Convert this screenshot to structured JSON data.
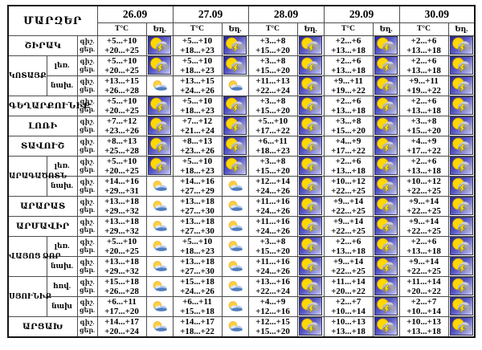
{
  "header": {
    "regions_label": "ՄԱՐԶԵՐ",
    "dates": [
      "26.09",
      "27.09",
      "28.09",
      "29.09",
      "30.09"
    ],
    "temp_label": "T°C",
    "weather_label": "Եղ."
  },
  "labels": {
    "night": "գիշ.",
    "day": "ցեր."
  },
  "colors": {
    "thunder_icon_bg": "#22229e",
    "sun": "#ffd800",
    "storm_cloud": "#a2a2b0",
    "lightning": "#ffe800",
    "partly_cloud": "#6f97cf",
    "border": "#4d4d4d",
    "text": "#000000"
  },
  "rows": [
    {
      "region": "ՇԻՐԱԿ",
      "rowspan": 1,
      "sub": null,
      "cells": [
        {
          "night": "+5...+10",
          "day": "+20...+25",
          "icon": "thunderstorm"
        },
        {
          "night": "+5...+10",
          "day": "+18...+23",
          "icon": "thunderstorm"
        },
        {
          "night": "+3...+8",
          "day": "+15...+20",
          "icon": "thunderstorm"
        },
        {
          "night": "+2...+6",
          "day": "+13...+18",
          "icon": "thunderstorm"
        },
        {
          "night": "+2...+6",
          "day": "+13...+18",
          "icon": "thunderstorm"
        }
      ]
    },
    {
      "region": "ԿՈՏԱՅՔ",
      "rowspan": 2,
      "sub": "լեռ.",
      "cells": [
        {
          "night": "+5...+10",
          "day": "+20...+25",
          "icon": "thunderstorm"
        },
        {
          "night": "+5...+10",
          "day": "+18...+23",
          "icon": "thunderstorm"
        },
        {
          "night": "+3...+8",
          "day": "+15...+20",
          "icon": "thunderstorm"
        },
        {
          "night": "+2...+6",
          "day": "+13...+18",
          "icon": "thunderstorm"
        },
        {
          "night": "+2...+6",
          "day": "+13...+18",
          "icon": "thunderstorm"
        }
      ]
    },
    {
      "region": null,
      "rowspan": 0,
      "sub": "նախ.",
      "cells": [
        {
          "night": "+13...+15",
          "day": "+26...+28",
          "icon": "partly-cloudy"
        },
        {
          "night": "+13...+15",
          "day": "+24...+26",
          "icon": "partly-cloudy"
        },
        {
          "night": "+11...+13",
          "day": "+22...+24",
          "icon": "thunderstorm"
        },
        {
          "night": "+9...+11",
          "day": "+19...+22",
          "icon": "thunderstorm"
        },
        {
          "night": "+9...+11",
          "day": "+19...+22",
          "icon": "thunderstorm"
        }
      ]
    },
    {
      "region": "ԳԵՂԱՐՔՈՒՆԻՔ",
      "rowspan": 1,
      "sub": null,
      "cells": [
        {
          "night": "+5...+10",
          "day": "+20...+25",
          "icon": "thunderstorm"
        },
        {
          "night": "+5...+10",
          "day": "+18...+23",
          "icon": "thunderstorm"
        },
        {
          "night": "+3...+8",
          "day": "+15...+20",
          "icon": "thunderstorm"
        },
        {
          "night": "+2...+6",
          "day": "+13...+18",
          "icon": "thunderstorm"
        },
        {
          "night": "+2...+6",
          "day": "+13...+18",
          "icon": "thunderstorm"
        }
      ]
    },
    {
      "region": "ԼՈՌԻ",
      "rowspan": 1,
      "sub": null,
      "cells": [
        {
          "night": "+7...+12",
          "day": "+23...+26",
          "icon": "thunderstorm"
        },
        {
          "night": "+7...+12",
          "day": "+21...+24",
          "icon": "thunderstorm"
        },
        {
          "night": "+5...+10",
          "day": "+17...+22",
          "icon": "thunderstorm"
        },
        {
          "night": "+3...+8",
          "day": "+15...+20",
          "icon": "thunderstorm"
        },
        {
          "night": "+3...+8",
          "day": "+15...+20",
          "icon": "thunderstorm"
        }
      ]
    },
    {
      "region": "ՏԱՎՈՒՇ",
      "rowspan": 1,
      "sub": null,
      "cells": [
        {
          "night": "+8...+13",
          "day": "+25...+28",
          "icon": "thunderstorm"
        },
        {
          "night": "+8...+13",
          "day": "+23...+26",
          "icon": "thunderstorm"
        },
        {
          "night": "+6...+11",
          "day": "+18...+23",
          "icon": "thunderstorm"
        },
        {
          "night": "+4...+9",
          "day": "+17...+22",
          "icon": "thunderstorm"
        },
        {
          "night": "+4...+9",
          "day": "+17...+22",
          "icon": "thunderstorm"
        }
      ]
    },
    {
      "region": "ԱՐԱԳԱԾՈՏՆ",
      "rowspan": 2,
      "sub": "լեռ.",
      "cells": [
        {
          "night": "+5...+10",
          "day": "+20...+25",
          "icon": "thunderstorm"
        },
        {
          "night": "+5...+10",
          "day": "+18...+23",
          "icon": "thunderstorm"
        },
        {
          "night": "+3...+8",
          "day": "+15...+20",
          "icon": "thunderstorm"
        },
        {
          "night": "+2...+6",
          "day": "+13...+18",
          "icon": "thunderstorm"
        },
        {
          "night": "+2...+6",
          "day": "+13...+18",
          "icon": "thunderstorm"
        }
      ]
    },
    {
      "region": null,
      "rowspan": 0,
      "sub": "նախ.",
      "cells": [
        {
          "night": "+14...+16",
          "day": "+29...+31",
          "icon": "partly-cloudy"
        },
        {
          "night": "+14...+16",
          "day": "+27...+29",
          "icon": "partly-cloudy"
        },
        {
          "night": "+12...+14",
          "day": "+24...+26",
          "icon": "thunderstorm"
        },
        {
          "night": "+10...+12",
          "day": "+22...+25",
          "icon": "thunderstorm"
        },
        {
          "night": "+10...+12",
          "day": "+22...+25",
          "icon": "thunderstorm"
        }
      ]
    },
    {
      "region": "ԱՐԱՐԱՏ",
      "rowspan": 1,
      "sub": null,
      "cells": [
        {
          "night": "+13...+18",
          "day": "+29...+32",
          "icon": "partly-cloudy"
        },
        {
          "night": "+13...+18",
          "day": "+27...+30",
          "icon": "partly-cloudy"
        },
        {
          "night": "+11...+16",
          "day": "+24...+26",
          "icon": "thunderstorm"
        },
        {
          "night": "+9...+14",
          "day": "+22...+25",
          "icon": "thunderstorm"
        },
        {
          "night": "+9...+14",
          "day": "+22...+25",
          "icon": "thunderstorm"
        }
      ]
    },
    {
      "region": "ԱՐՄԱՎԻՐ",
      "rowspan": 1,
      "sub": null,
      "cells": [
        {
          "night": "+13...+18",
          "day": "+29...+32",
          "icon": "partly-cloudy"
        },
        {
          "night": "+13...+18",
          "day": "+27...+30",
          "icon": "partly-cloudy"
        },
        {
          "night": "+11...+16",
          "day": "+24...+26",
          "icon": "thunderstorm"
        },
        {
          "night": "+9...+14",
          "day": "+22...+25",
          "icon": "thunderstorm"
        },
        {
          "night": "+9...+14",
          "day": "+22...+25",
          "icon": "thunderstorm"
        }
      ]
    },
    {
      "region": "ՎԱՅՈՑ ՁՈՐ",
      "rowspan": 2,
      "sub": "լեռ.",
      "cells": [
        {
          "night": "+5...+10",
          "day": "+20...+25",
          "icon": "partly-cloudy"
        },
        {
          "night": "+5...+10",
          "day": "+18...+23",
          "icon": "partly-cloudy"
        },
        {
          "night": "+3...+8",
          "day": "+15...+20",
          "icon": "thunderstorm"
        },
        {
          "night": "+2...+6",
          "day": "+13...+18",
          "icon": "thunderstorm"
        },
        {
          "night": "+2...+6",
          "day": "+13...+18",
          "icon": "thunderstorm"
        }
      ]
    },
    {
      "region": null,
      "rowspan": 0,
      "sub": "նախ.",
      "cells": [
        {
          "night": "+13...+18",
          "day": "+29...+32",
          "icon": "partly-cloudy"
        },
        {
          "night": "+13...+18",
          "day": "+27...+30",
          "icon": "partly-cloudy"
        },
        {
          "night": "+11...+16",
          "day": "+24...+26",
          "icon": "thunderstorm"
        },
        {
          "night": "+9...+14",
          "day": "+22...+25",
          "icon": "thunderstorm"
        },
        {
          "night": "+9...+14",
          "day": "+22...+25",
          "icon": "thunderstorm"
        }
      ]
    },
    {
      "region": "ՍՅՈՒՆԻՔ",
      "rowspan": 2,
      "sub": "հով.",
      "cells": [
        {
          "night": "+15...+18",
          "day": "+26...+28",
          "icon": "partly-cloudy"
        },
        {
          "night": "+15...+18",
          "day": "+24...+26",
          "icon": "partly-cloudy"
        },
        {
          "night": "+13...+16",
          "day": "+22...+24",
          "icon": "thunderstorm"
        },
        {
          "night": "+11...+14",
          "day": "+20...+22",
          "icon": "thunderstorm"
        },
        {
          "night": "+11...+14",
          "day": "+20...+22",
          "icon": "thunderstorm"
        }
      ]
    },
    {
      "region": null,
      "rowspan": 0,
      "sub": "նախ",
      "cells": [
        {
          "night": "+6...+11",
          "day": "+17...+20",
          "icon": "partly-cloudy"
        },
        {
          "night": "+6...+11",
          "day": "+15...+18",
          "icon": "partly-cloudy"
        },
        {
          "night": "+4...+9",
          "day": "+12...+16",
          "icon": "thunderstorm"
        },
        {
          "night": "+2...+7",
          "day": "+10...+14",
          "icon": "thunderstorm"
        },
        {
          "night": "+2...+7",
          "day": "+10...+14",
          "icon": "thunderstorm"
        }
      ]
    },
    {
      "region": "ԱՐՑԱԽ",
      "rowspan": 1,
      "sub": null,
      "cells": [
        {
          "night": "+14...+17",
          "day": "+20...+24",
          "icon": "partly-cloudy"
        },
        {
          "night": "+14...+17",
          "day": "+18...+22",
          "icon": "partly-cloudy"
        },
        {
          "night": "+12...+15",
          "day": "+15...+20",
          "icon": "thunderstorm"
        },
        {
          "night": "+10...+13",
          "day": "+13...+18",
          "icon": "thunderstorm"
        },
        {
          "night": "+10...+13",
          "day": "+13...+18",
          "icon": "thunderstorm"
        }
      ]
    }
  ]
}
